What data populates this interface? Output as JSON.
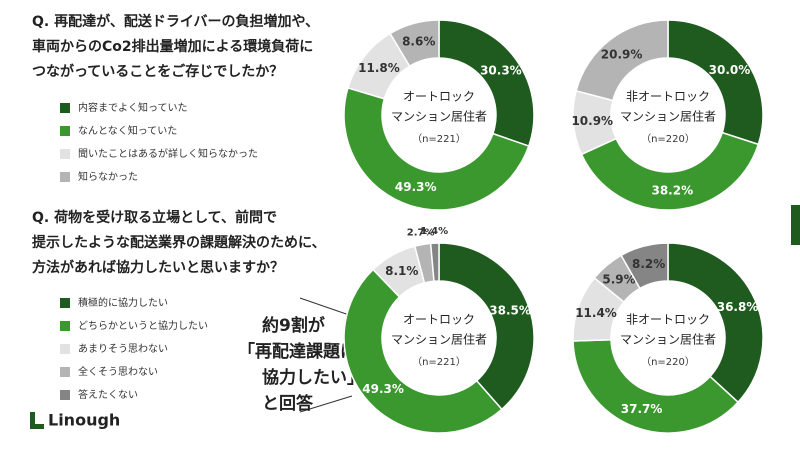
{
  "logo": "Linough",
  "callout": [
    "約9割が",
    "「再配達課題に",
    "協力したい」",
    "と回答"
  ],
  "chart_data": [
    {
      "type": "pie",
      "donut": true,
      "question": [
        "Q. 再配達が、配送ドライバーの負担増加や、",
        "車両からのCo2排出量増加による環境負荷に",
        "つながっていることをご存じでしたか？"
      ],
      "categories": [
        "内容までよく知っていた",
        "なんとなく知っていた",
        "聞いたことはあるが詳しく知らなかった",
        "知らなかった"
      ],
      "colors": [
        "#1f5a1f",
        "#3a982e",
        "#e2e2e2",
        "#b4b4b4"
      ],
      "series": [
        {
          "name": [
            "オートロック",
            "マンション居住者"
          ],
          "sample": "（n=221）",
          "values": [
            30.3,
            49.3,
            11.8,
            8.6
          ],
          "value_labels": [
            "30.3%",
            "49.3%",
            "11.8%",
            "8.6%"
          ]
        },
        {
          "name": [
            "非オートロック",
            "マンション居住者"
          ],
          "sample": "（n=220）",
          "values": [
            30.0,
            38.2,
            10.9,
            20.9
          ],
          "value_labels": [
            "30.0%",
            "38.2%",
            "10.9%",
            "20.9%"
          ]
        }
      ]
    },
    {
      "type": "pie",
      "donut": true,
      "question": [
        "Q. 荷物を受け取る立場として、前問で",
        "提示したような配送業界の課題解決のために、",
        "方法があれば協力したいと思いますか？"
      ],
      "categories": [
        "積極的に協力したい",
        "どちらかというと協力したい",
        "あまりそう思わない",
        "全くそう思わない",
        "答えたくない"
      ],
      "colors": [
        "#1f5a1f",
        "#3a982e",
        "#e2e2e2",
        "#b4b4b4",
        "#858585"
      ],
      "series": [
        {
          "name": [
            "オートロック",
            "マンション居住者"
          ],
          "sample": "（n=221）",
          "values": [
            38.5,
            49.3,
            8.1,
            2.7,
            1.4
          ],
          "value_labels": [
            "38.5%",
            "49.3%",
            "8.1%",
            "2.7%",
            "1.4%"
          ]
        },
        {
          "name": [
            "非オートロック",
            "マンション居住者"
          ],
          "sample": "（n=220）",
          "values": [
            36.8,
            37.7,
            11.4,
            5.9,
            8.2
          ],
          "value_labels": [
            "36.8%",
            "37.7%",
            "11.4%",
            "5.9%",
            "8.2%"
          ]
        }
      ]
    }
  ]
}
